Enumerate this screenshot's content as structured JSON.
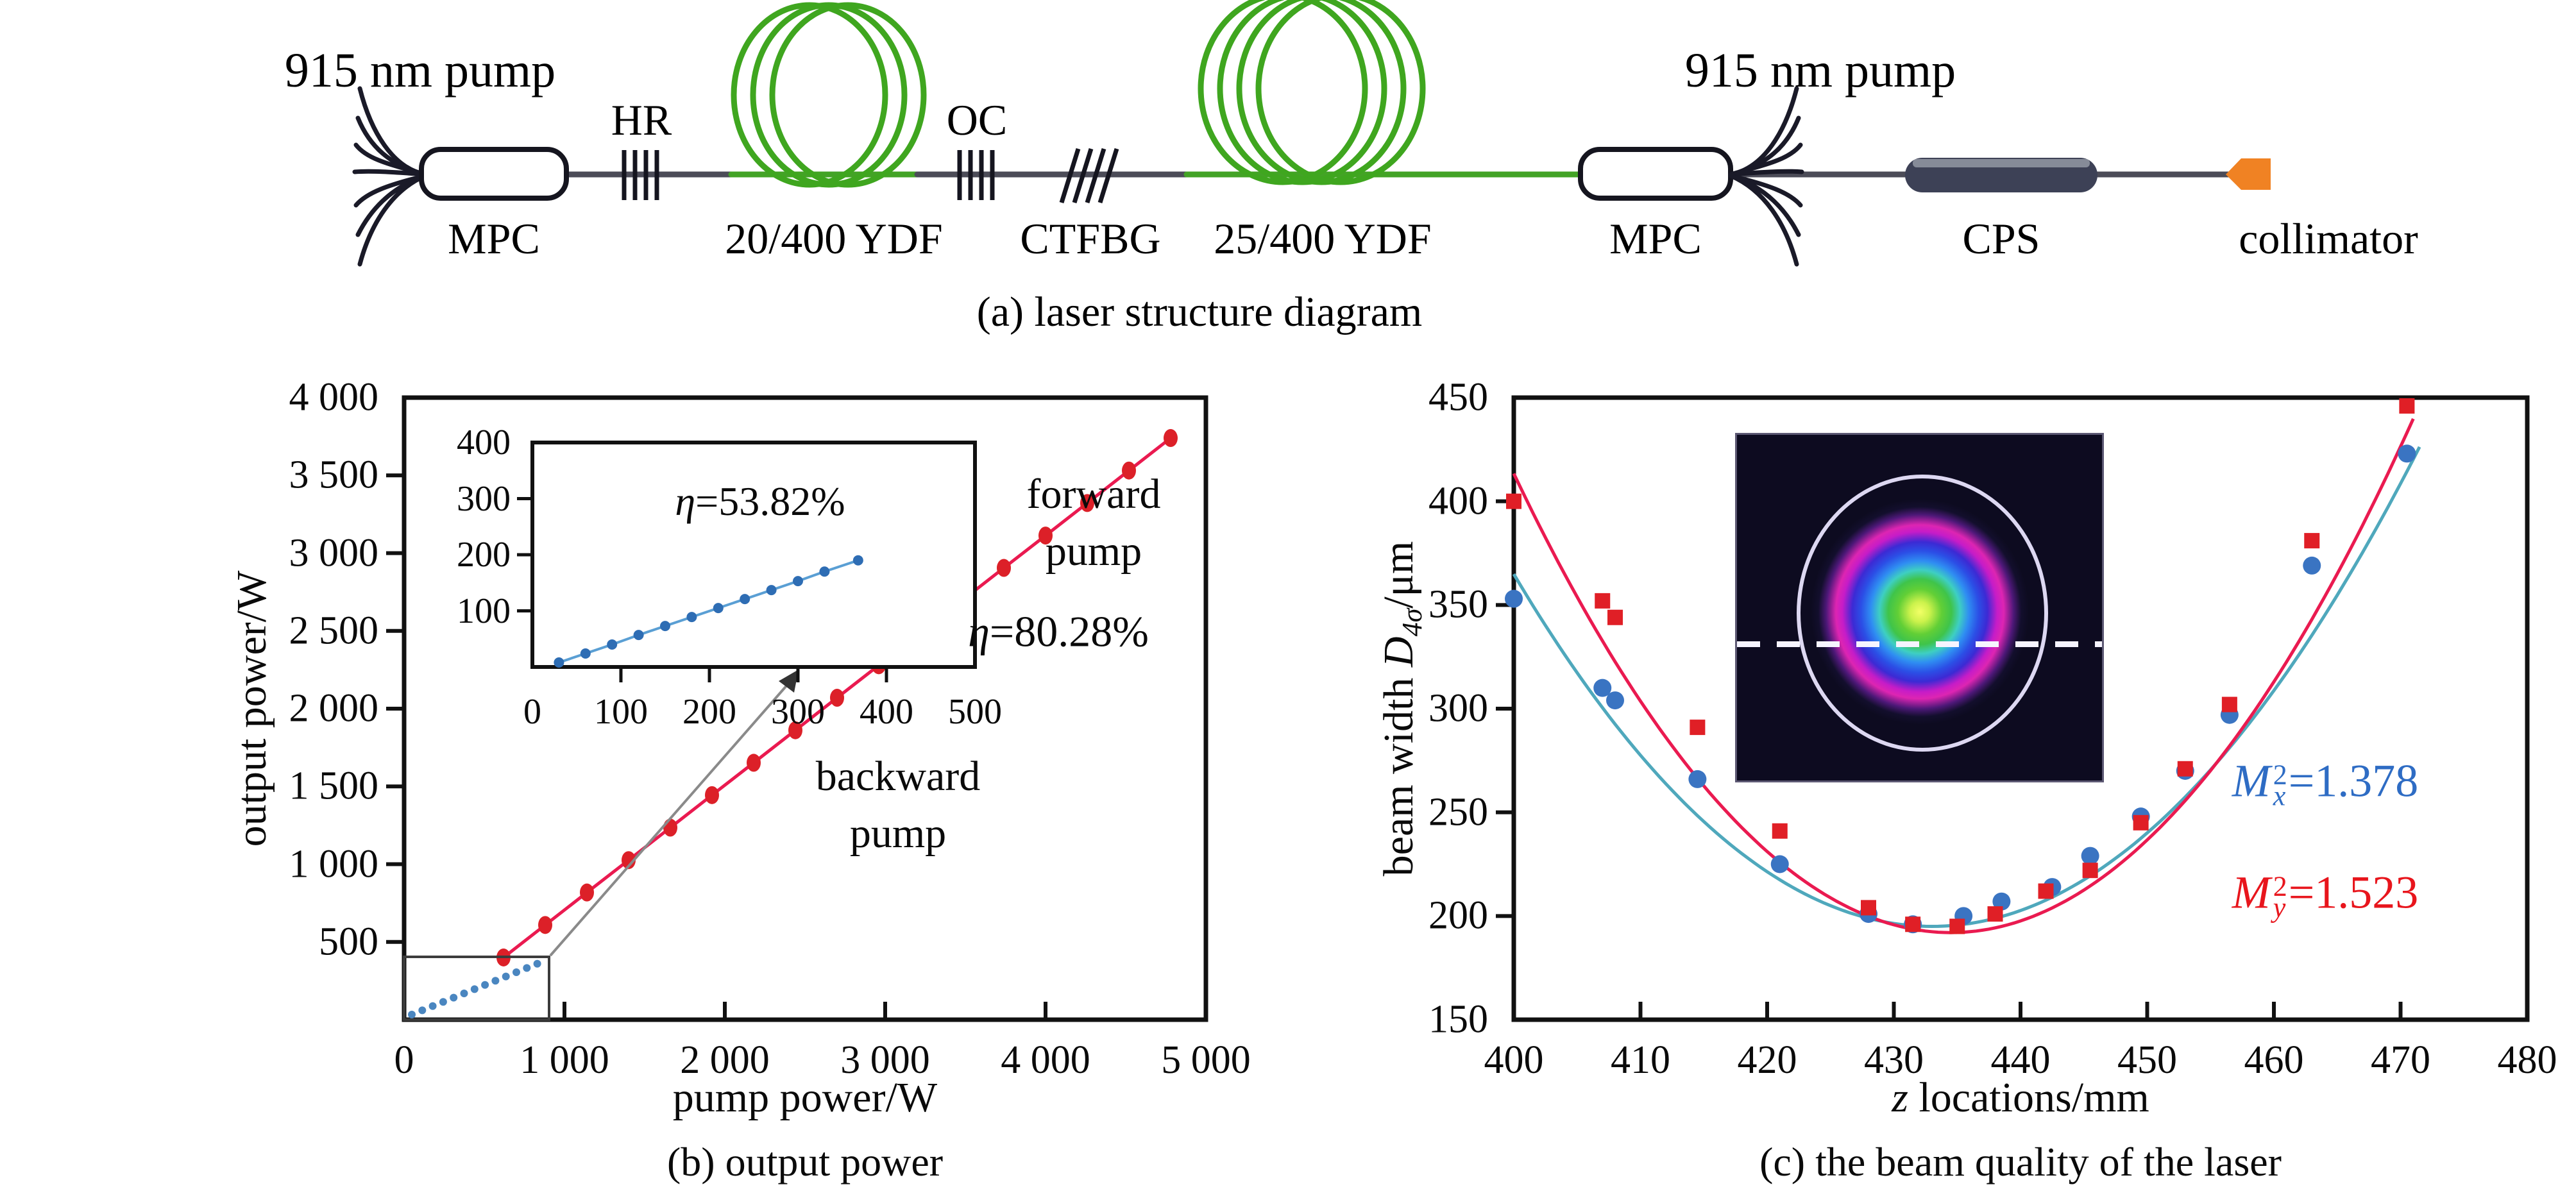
{
  "figure": {
    "panel_a": {
      "caption": "(a) laser structure diagram",
      "pump_left": "915 nm pump",
      "pump_right": "915 nm pump",
      "mpc_left": "MPC",
      "mpc_right": "MPC",
      "hr": "HR",
      "oc": "OC",
      "ctfbg": "CTFBG",
      "ydf_small": "20/400 YDF",
      "ydf_large": "25/400 YDF",
      "cps": "CPS",
      "collimator": "collimator",
      "fiber_color": "#4c4c58",
      "gain_fiber_color": "#43a326",
      "coil_color": "#3fa61f",
      "cps_color": "#3d4156",
      "collimator_color": "#f08223"
    }
  },
  "chart_data": [
    {
      "id": "output_power",
      "type": "scatter",
      "title": "(b) output power",
      "xlabel": "pump power/W",
      "ylabel": "output power/W",
      "xlim": [
        0,
        5000
      ],
      "ylim": [
        0,
        4000
      ],
      "grid": false,
      "xticks": {
        "values": [
          0,
          1000,
          2000,
          3000,
          4000,
          5000
        ],
        "labels": [
          "0",
          "1 000",
          "2 000",
          "3 000",
          "4 000",
          "5 000"
        ]
      },
      "yticks": {
        "values": [
          500,
          1000,
          1500,
          2000,
          2500,
          3000,
          3500,
          4000
        ],
        "labels": [
          "500",
          "1 000",
          "1 500",
          "2 000",
          "2 500",
          "3 000",
          "3 500",
          "4 000"
        ]
      },
      "series": [
        {
          "name": "backward pump",
          "line_color": "#ea1a50",
          "marker_color": "#dc2028",
          "x": [
            620,
            880,
            1140,
            1400,
            1660,
            1920,
            2180,
            2440,
            2700,
            2960,
            3220,
            3480,
            3740,
            4000,
            4260,
            4520,
            4780
          ],
          "y": [
            400,
            609,
            818,
            1026,
            1235,
            1444,
            1652,
            1861,
            2070,
            2279,
            2487,
            2696,
            2905,
            3113,
            3322,
            3531,
            3740
          ]
        }
      ],
      "annotations": {
        "eta": {
          "sym": "η",
          "val": "=80.28%"
        },
        "series_label": [
          "backward",
          "pump"
        ]
      }
    },
    {
      "id": "forward_pump_inset",
      "type": "scatter",
      "xlim": [
        0,
        500
      ],
      "ylim": [
        0,
        400
      ],
      "xticks": {
        "values": [
          0,
          100,
          200,
          300,
          400,
          500
        ],
        "labels": [
          "0",
          "100",
          "200",
          "300",
          "400",
          "500"
        ]
      },
      "yticks": {
        "values": [
          100,
          200,
          300,
          400
        ],
        "labels": [
          "100",
          "200",
          "300",
          "400"
        ]
      },
      "series": [
        {
          "name": "forward pump",
          "line_color": "#5a9fd4",
          "marker_color": "#2e6db4",
          "x": [
            30,
            60,
            90,
            120,
            150,
            180,
            210,
            240,
            270,
            300,
            330,
            368
          ],
          "y": [
            8,
            24,
            40,
            57,
            73,
            89,
            105,
            121,
            137,
            153,
            170,
            190
          ]
        }
      ],
      "annotation": {
        "sym": "η",
        "val": "=53.82%"
      },
      "side_label": [
        "forward",
        "pump"
      ]
    },
    {
      "id": "beam_quality",
      "type": "scatter",
      "title": "(c) the beam quality of the laser",
      "xlabel_parts": {
        "it": "z",
        "rest": " locations/mm"
      },
      "ylabel_parts": {
        "prefix": "beam width ",
        "d": "D",
        "sub": "4σ",
        "suffix": "/μm"
      },
      "xlim": [
        400,
        480
      ],
      "ylim": [
        150,
        450
      ],
      "grid": false,
      "xticks": {
        "values": [
          400,
          410,
          420,
          430,
          440,
          450,
          460,
          470,
          480
        ],
        "labels": [
          "400",
          "410",
          "420",
          "430",
          "440",
          "450",
          "460",
          "470",
          "480"
        ]
      },
      "yticks": {
        "values": [
          150,
          200,
          250,
          300,
          350,
          400,
          450
        ],
        "labels": [
          "150",
          "200",
          "250",
          "300",
          "350",
          "400",
          "450"
        ]
      },
      "series": [
        {
          "name": "Mx2",
          "marker": "circle",
          "marker_color": "#3a74c2",
          "line_color": "#4fa8bc",
          "x": [
            400,
            407,
            408,
            414.5,
            421,
            428,
            431.5,
            435.5,
            438.5,
            442.5,
            445.5,
            449.5,
            453,
            456.5,
            463,
            470.5
          ],
          "y": [
            353,
            310,
            304,
            266,
            225,
            201,
            196,
            200,
            207,
            214,
            229,
            248,
            270,
            297,
            369,
            423
          ],
          "fit": {
            "vertex_x": 433,
            "vertex_y": 195,
            "a": 0.156,
            "x_start": 400,
            "x_end": 471.5
          },
          "label": {
            "base": "M",
            "sub": "x",
            "sup": "2",
            "val": "=1.378",
            "color": "#2e6cc4"
          }
        },
        {
          "name": "My2",
          "marker": "square",
          "marker_color": "#e01f26",
          "line_color": "#ea1a50",
          "x": [
            400,
            407,
            408,
            414.5,
            421,
            428,
            431.5,
            435,
            438,
            442,
            445.5,
            449.5,
            453,
            456.5,
            463,
            470.5
          ],
          "y": [
            400,
            352,
            344,
            291,
            241,
            204,
            196,
            195,
            201,
            212,
            222,
            245,
            271,
            302,
            381,
            446
          ],
          "fit": {
            "vertex_x": 434.5,
            "vertex_y": 192,
            "a": 0.186,
            "x_start": 400,
            "x_end": 471
          },
          "label": {
            "base": "M",
            "sub": "y",
            "sup": "2",
            "val": "=1.523",
            "color": "#e8151c"
          }
        }
      ]
    }
  ]
}
